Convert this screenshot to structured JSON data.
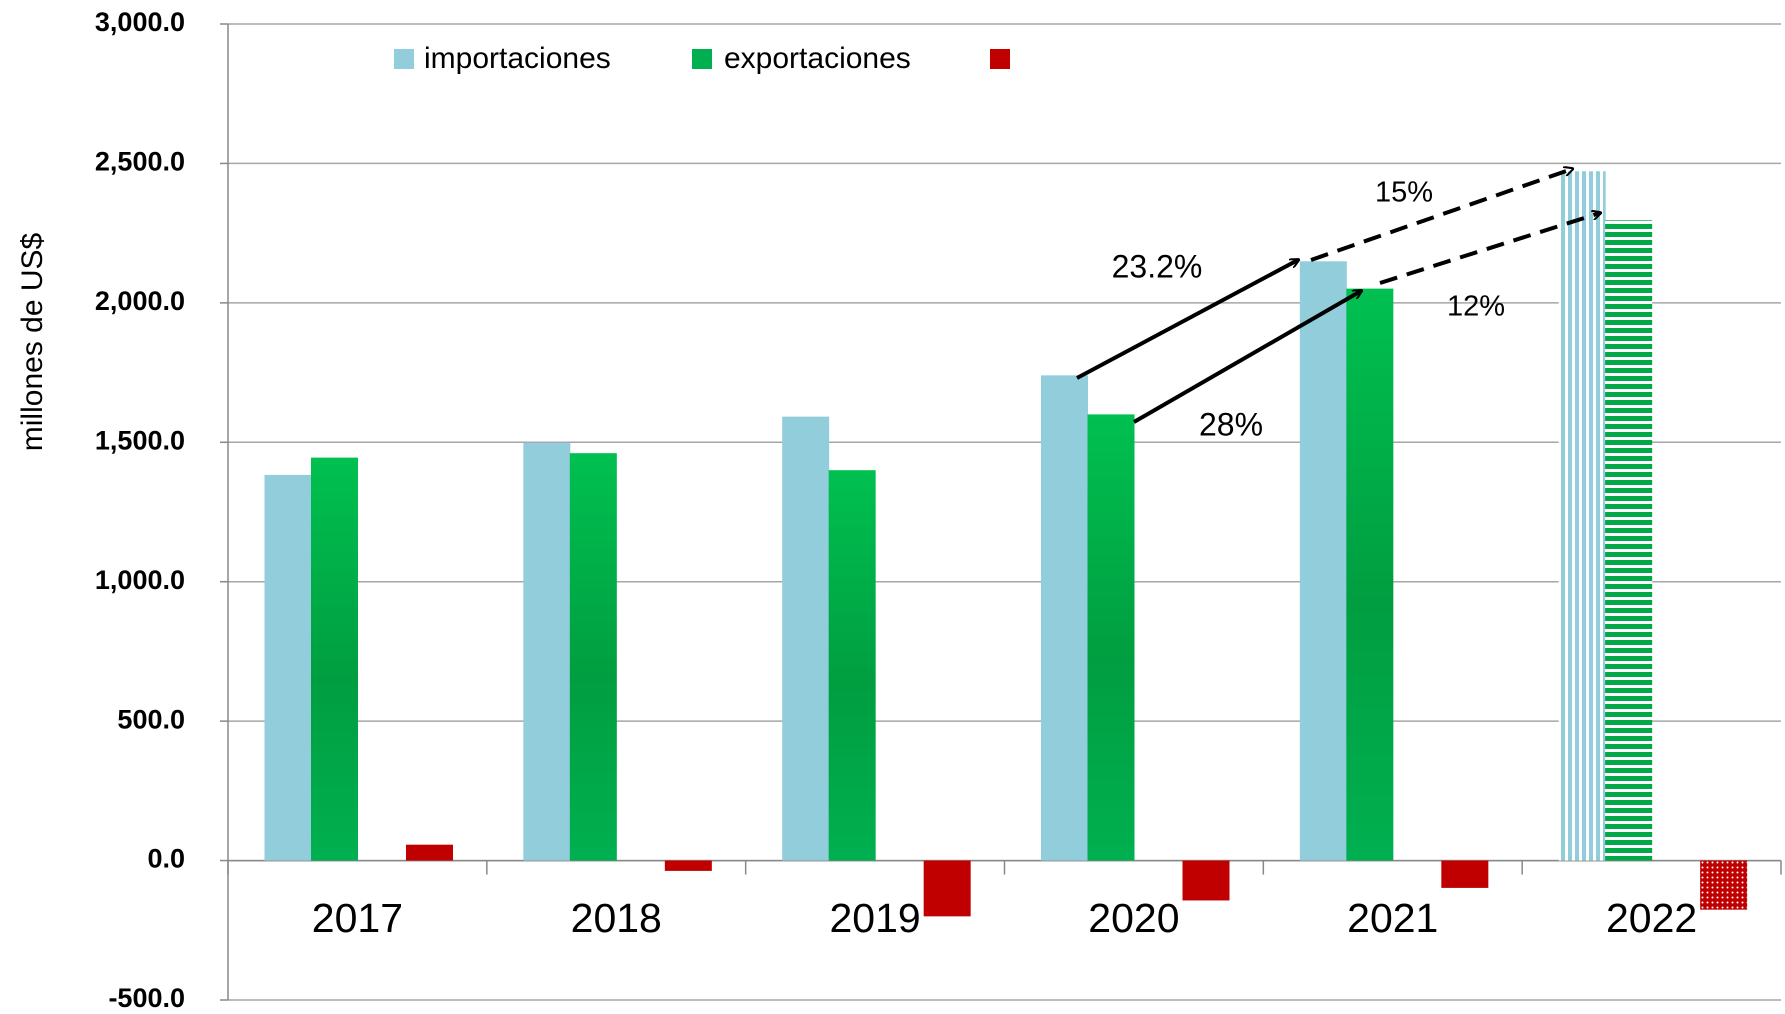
{
  "chart_data": {
    "type": "bar",
    "y_label": "millones de US$",
    "categories": [
      "2017",
      "2018",
      "2019",
      "2020",
      "2021",
      "2022"
    ],
    "series": [
      {
        "name": "importaciones",
        "color": "#92cddc",
        "values": [
          1383,
          1498,
          1592,
          1740,
          2149,
          2472
        ]
      },
      {
        "name": "exportaciones",
        "color": "#00b050",
        "values": [
          1445,
          1461,
          1400,
          1600,
          2051,
          2296
        ]
      },
      {
        "color": "#c00000",
        "values": [
          57,
          -37,
          -200,
          -143,
          -98,
          -176
        ]
      }
    ],
    "hatched_index": 5,
    "annotations": [
      "23.2%",
      "28%",
      "15%",
      "12%"
    ],
    "ylim": [
      -500,
      3000
    ],
    "yticks": [
      {
        "value": -500,
        "label": "-500.0"
      },
      {
        "value": 0,
        "label": "0.0"
      },
      {
        "value": 500,
        "label": "500.0"
      },
      {
        "value": 1000,
        "label": "1,000.0"
      },
      {
        "value": 1500,
        "label": "1,500.0"
      },
      {
        "value": 2000,
        "label": "2,000.0"
      },
      {
        "value": 2500,
        "label": "2,500.0"
      },
      {
        "value": 3000,
        "label": "3,000.0"
      }
    ],
    "grid": true,
    "legend": "top"
  }
}
